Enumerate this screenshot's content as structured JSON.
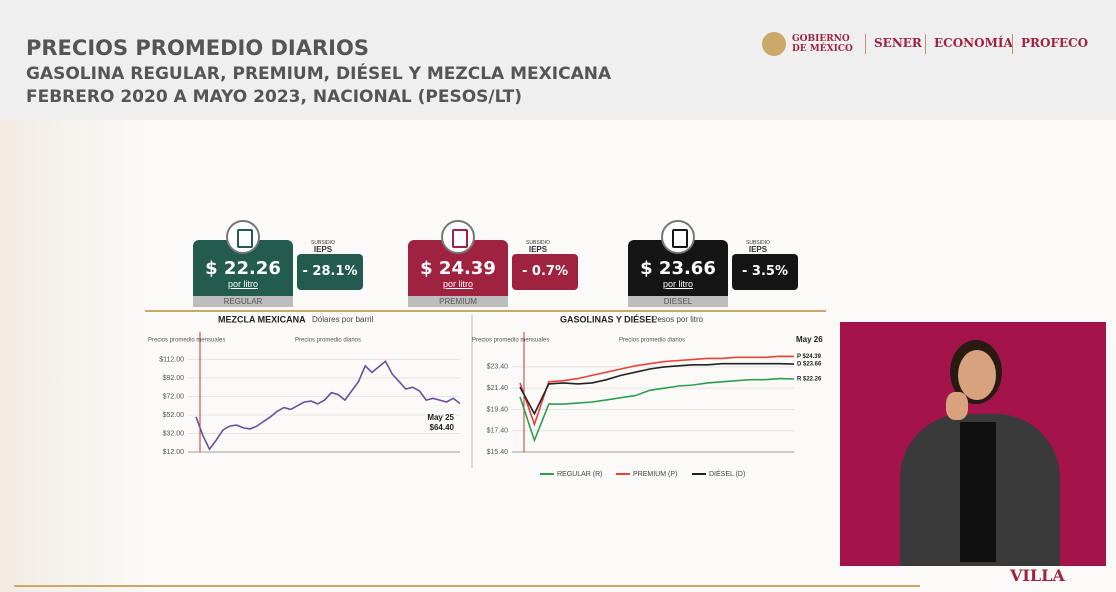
{
  "header": {
    "title": "PRECIOS PROMEDIO DIARIOS",
    "subtitle": "GASOLINA REGULAR, PREMIUM, DIÉSEL Y MEZCLA MEXICANA",
    "period": "FEBRERO 2020 A MAYO 2023, NACIONAL (PESOS/LT)"
  },
  "logos": [
    "GOBIERNO DE MÉXICO",
    "SENER",
    "ECONOMÍA",
    "PROFECO"
  ],
  "cards": [
    {
      "price": "$ 22.26",
      "unit": "por litro",
      "name": "REGULAR",
      "subsidy_label": "SUBSIDIO",
      "ieps": "IEPS",
      "subsidy": "- 28.1%",
      "color": "#235b4e"
    },
    {
      "price": "$ 24.39",
      "unit": "por litro",
      "name": "PREMIUM",
      "subsidy_label": "SUBSIDIO",
      "ieps": "IEPS",
      "subsidy": "- 0.7%",
      "color": "#9f2241"
    },
    {
      "price": "$ 23.66",
      "unit": "por litro",
      "name": "DIESEL",
      "subsidy_label": "SUBSIDIO",
      "ieps": "IEPS",
      "subsidy": "- 3.5%",
      "color": "#151515"
    }
  ],
  "footer_logo": "VILLA",
  "chart_data": [
    {
      "type": "line",
      "title": "MEZCLA MEXICANA",
      "subtitle": "Dólares por barril",
      "color": "#6b4f9e",
      "note_monthly": "Precios promedio mensuales",
      "note_daily": "Precios promedio diarios",
      "last_date": "May 25",
      "last_value_label": "$64.40",
      "values": [
        50,
        30,
        15,
        25,
        36,
        40,
        41,
        38,
        37,
        40,
        45,
        50,
        56,
        60,
        58,
        62,
        66,
        67,
        64,
        68,
        76,
        74,
        68,
        78,
        88,
        105,
        98,
        104,
        110,
        96,
        88,
        80,
        82,
        78,
        68,
        70,
        68,
        66,
        70,
        64.4
      ],
      "ylim": [
        12,
        120
      ],
      "yticks": [
        {
          "value": 12,
          "label": "$12.00"
        },
        {
          "value": 32,
          "label": "$32.00"
        },
        {
          "value": 52,
          "label": "$52.00"
        },
        {
          "value": 72,
          "label": "$72.00"
        },
        {
          "value": 92,
          "label": "$92.00"
        },
        {
          "value": 112,
          "label": "$112.00"
        }
      ],
      "grid": true
    },
    {
      "type": "line",
      "title": "GASOLINAS Y DIÉSEL",
      "subtitle": "Pesos por litro",
      "note_monthly": "Precios promedio mensuales",
      "note_daily": "Precios promedio diarios",
      "last_date": "May 26",
      "series": [
        {
          "name": "REGULAR (R)",
          "color": "#2e9e4f",
          "end_label": "R $22.26",
          "values": [
            20.6,
            16.5,
            19.9,
            19.9,
            20.0,
            20.1,
            20.3,
            20.5,
            20.7,
            21.2,
            21.4,
            21.6,
            21.7,
            21.9,
            22.0,
            22.1,
            22.2,
            22.2,
            22.3,
            22.26
          ]
        },
        {
          "name": "PREMIUM (P)",
          "color": "#e8433a",
          "end_label": "P $24.39",
          "values": [
            21.9,
            18.0,
            22.0,
            22.1,
            22.3,
            22.6,
            22.9,
            23.2,
            23.5,
            23.7,
            23.9,
            24.0,
            24.1,
            24.2,
            24.2,
            24.3,
            24.3,
            24.3,
            24.4,
            24.39
          ]
        },
        {
          "name": "DIÉSEL (D)",
          "color": "#222222",
          "end_label": "D $23.66",
          "values": [
            21.5,
            19.0,
            21.8,
            21.9,
            21.8,
            21.9,
            22.2,
            22.6,
            22.9,
            23.2,
            23.4,
            23.5,
            23.6,
            23.6,
            23.7,
            23.7,
            23.7,
            23.7,
            23.7,
            23.66
          ]
        }
      ],
      "ylim": [
        15.4,
        24.8
      ],
      "yticks": [
        {
          "value": 15.4,
          "label": "$15.40"
        },
        {
          "value": 17.4,
          "label": "$17.40"
        },
        {
          "value": 19.4,
          "label": "$19.40"
        },
        {
          "value": 21.4,
          "label": "$21.40"
        },
        {
          "value": 23.4,
          "label": "$23.40"
        }
      ],
      "grid": true
    }
  ]
}
